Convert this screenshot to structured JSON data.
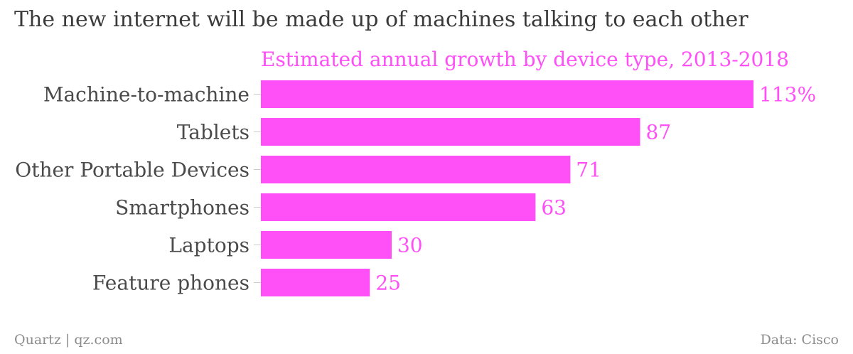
{
  "header": {
    "title": "The new internet will be made up of machines talking to each other"
  },
  "footer": {
    "source_left": "Quartz | qz.com",
    "source_right": "Data: Cisco"
  },
  "colors": {
    "bar": "#ff4ff6",
    "subtitle": "#ff4ff6",
    "value_label": "#ff4ff6",
    "category_label": "#4a4a4a",
    "tick": "#cccccc"
  },
  "chart_data": {
    "type": "bar",
    "orientation": "horizontal",
    "title": "The new internet will be made up of machines talking to each other",
    "subtitle": "Estimated annual growth by device type, 2013-2018",
    "categories": [
      "Machine-to-machine",
      "Tablets",
      "Other Portable Devices",
      "Smartphones",
      "Laptops",
      "Feature phones"
    ],
    "values": [
      113,
      87,
      71,
      63,
      30,
      25
    ],
    "value_labels": [
      "113%",
      "87",
      "71",
      "63",
      "30",
      "25"
    ],
    "unit": "%",
    "xlim": [
      0,
      113
    ],
    "grid": false,
    "legend": "none"
  }
}
